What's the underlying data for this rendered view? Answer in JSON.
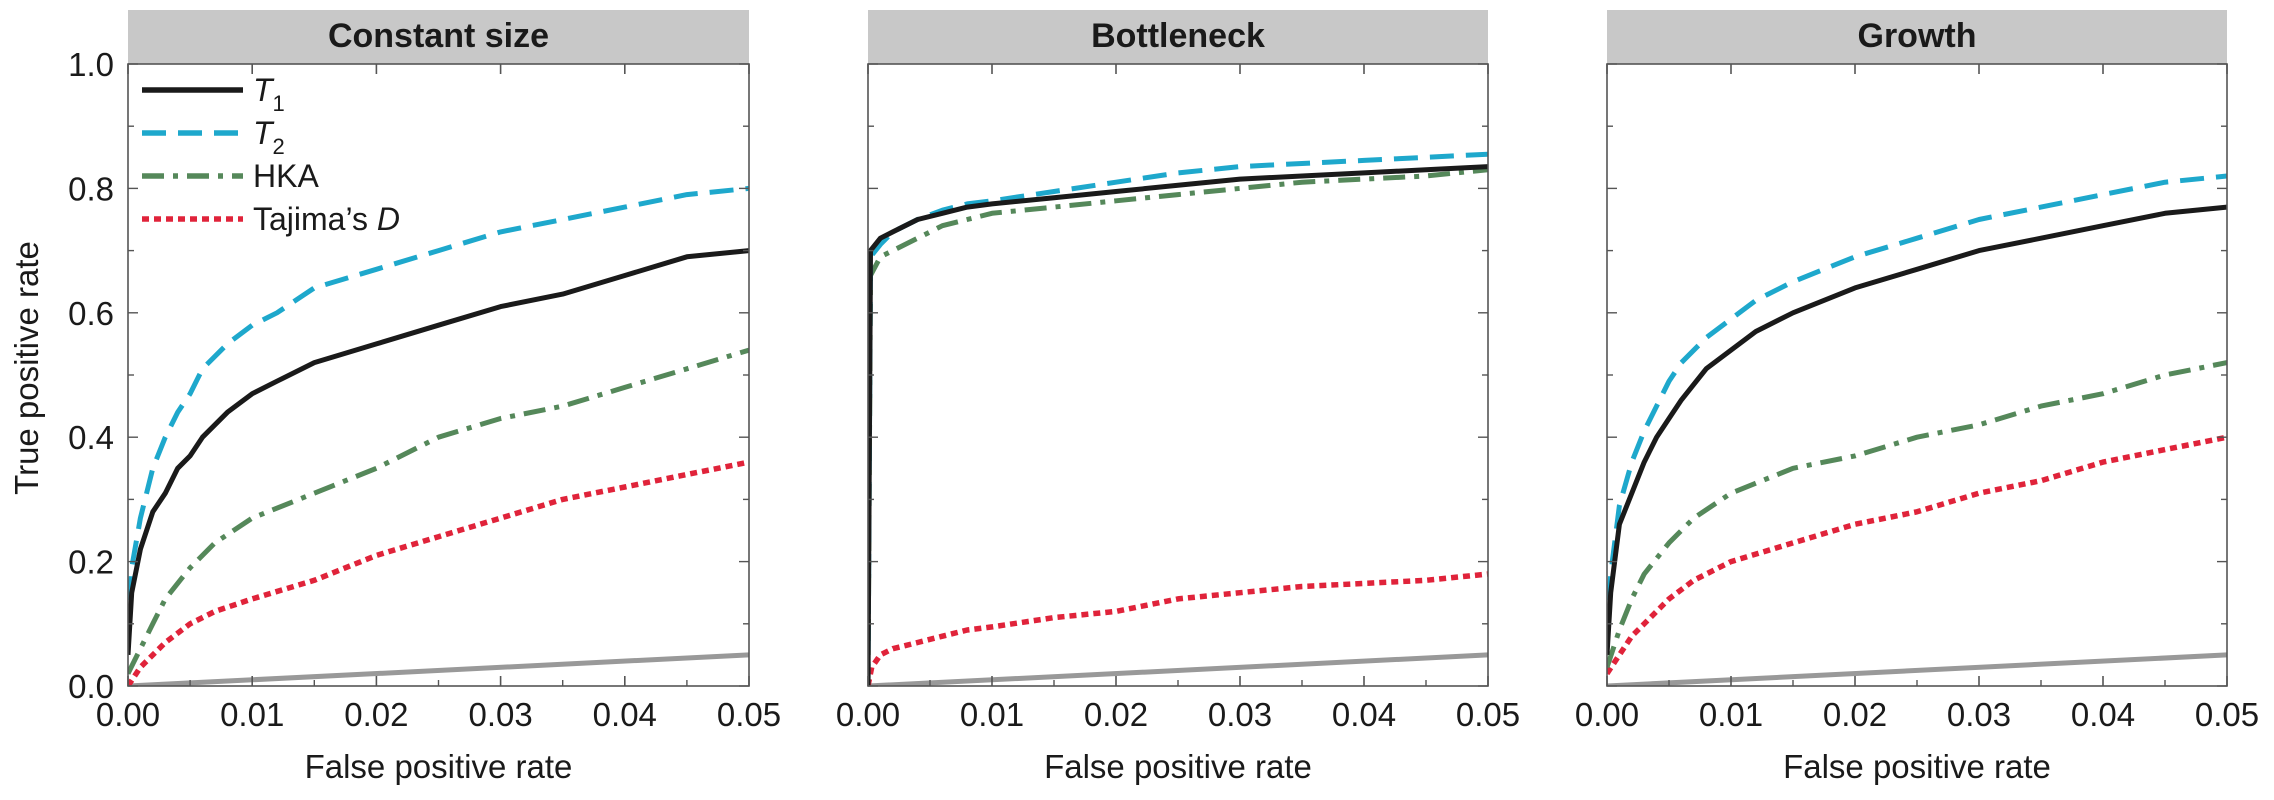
{
  "figure": {
    "ylabel": "True positive rate"
  },
  "legend": [
    {
      "label": "T",
      "sub": "1",
      "italic": true
    },
    {
      "label": "T",
      "sub": "2",
      "italic": true
    },
    {
      "label": "HKA",
      "sub": "",
      "italic": false
    },
    {
      "label": "Tajima’s ",
      "italic_part": "D",
      "italic": false
    }
  ],
  "styles": {
    "T1": {
      "color": "#1a1a1a",
      "dash": "none"
    },
    "T2": {
      "color": "#1ea8cc",
      "dash": "24,12"
    },
    "HKA": {
      "color": "#55885a",
      "dash": "22,9,5,9"
    },
    "TajimaD": {
      "color": "#e0233a",
      "dash": "7,5"
    },
    "diagonal": {
      "color": "#999999",
      "dash": "none"
    },
    "title_bar_color": "#c8c8c8"
  },
  "chart_data": [
    {
      "type": "line",
      "title": "Constant size",
      "xlabel": "False positive rate",
      "ylabel": "True positive rate",
      "xlim": [
        0,
        0.05
      ],
      "ylim": [
        0,
        1.0
      ],
      "xticks": [
        "0.00",
        "0.01",
        "0.02",
        "0.03",
        "0.04",
        "0.05"
      ],
      "yticks": [
        "0.0",
        "0.2",
        "0.4",
        "0.6",
        "0.8",
        "1.0"
      ],
      "legend_position": "top-left",
      "series": [
        {
          "name": "T1",
          "x": [
            0,
            0.0003,
            0.001,
            0.002,
            0.003,
            0.004,
            0.005,
            0.006,
            0.008,
            0.01,
            0.012,
            0.015,
            0.02,
            0.025,
            0.03,
            0.035,
            0.04,
            0.045,
            0.05
          ],
          "y": [
            0.05,
            0.15,
            0.22,
            0.28,
            0.31,
            0.35,
            0.37,
            0.4,
            0.44,
            0.47,
            0.49,
            0.52,
            0.55,
            0.58,
            0.61,
            0.63,
            0.66,
            0.69,
            0.7
          ]
        },
        {
          "name": "T2",
          "x": [
            0,
            0.0003,
            0.001,
            0.002,
            0.003,
            0.004,
            0.005,
            0.006,
            0.008,
            0.01,
            0.012,
            0.015,
            0.02,
            0.025,
            0.03,
            0.035,
            0.04,
            0.045,
            0.05
          ],
          "y": [
            0.08,
            0.19,
            0.27,
            0.35,
            0.4,
            0.44,
            0.47,
            0.51,
            0.55,
            0.58,
            0.6,
            0.64,
            0.67,
            0.7,
            0.73,
            0.75,
            0.77,
            0.79,
            0.8
          ]
        },
        {
          "name": "HKA",
          "x": [
            0,
            0.001,
            0.002,
            0.003,
            0.005,
            0.007,
            0.01,
            0.015,
            0.02,
            0.025,
            0.03,
            0.035,
            0.04,
            0.045,
            0.05
          ],
          "y": [
            0.02,
            0.06,
            0.1,
            0.14,
            0.19,
            0.23,
            0.27,
            0.31,
            0.35,
            0.4,
            0.43,
            0.45,
            0.48,
            0.51,
            0.54
          ]
        },
        {
          "name": "Tajima's D",
          "x": [
            0,
            0.001,
            0.002,
            0.003,
            0.005,
            0.007,
            0.01,
            0.015,
            0.02,
            0.025,
            0.03,
            0.035,
            0.04,
            0.045,
            0.05
          ],
          "y": [
            0.0,
            0.03,
            0.05,
            0.07,
            0.1,
            0.12,
            0.14,
            0.17,
            0.21,
            0.24,
            0.27,
            0.3,
            0.32,
            0.34,
            0.36
          ]
        },
        {
          "name": "diagonal",
          "x": [
            0,
            0.05
          ],
          "y": [
            0,
            0.05
          ]
        }
      ]
    },
    {
      "type": "line",
      "title": "Bottleneck",
      "xlabel": "False positive rate",
      "ylabel": "True positive rate",
      "xlim": [
        0,
        0.05
      ],
      "ylim": [
        0,
        1.0
      ],
      "xticks": [
        "0.00",
        "0.01",
        "0.02",
        "0.03",
        "0.04",
        "0.05"
      ],
      "yticks": [],
      "series": [
        {
          "name": "T1",
          "x": [
            0,
            0.0002,
            0.001,
            0.002,
            0.004,
            0.006,
            0.008,
            0.01,
            0.015,
            0.02,
            0.025,
            0.03,
            0.035,
            0.04,
            0.045,
            0.05
          ],
          "y": [
            0.0,
            0.7,
            0.72,
            0.73,
            0.75,
            0.76,
            0.77,
            0.775,
            0.785,
            0.795,
            0.805,
            0.815,
            0.82,
            0.825,
            0.83,
            0.835
          ]
        },
        {
          "name": "T2",
          "x": [
            0,
            0.0002,
            0.001,
            0.002,
            0.004,
            0.006,
            0.008,
            0.01,
            0.015,
            0.02,
            0.025,
            0.03,
            0.035,
            0.04,
            0.045,
            0.05
          ],
          "y": [
            0.0,
            0.69,
            0.71,
            0.73,
            0.75,
            0.765,
            0.775,
            0.78,
            0.795,
            0.81,
            0.825,
            0.835,
            0.84,
            0.845,
            0.85,
            0.855
          ]
        },
        {
          "name": "HKA",
          "x": [
            0,
            0.0002,
            0.001,
            0.002,
            0.004,
            0.006,
            0.008,
            0.01,
            0.015,
            0.02,
            0.025,
            0.03,
            0.035,
            0.04,
            0.045,
            0.05
          ],
          "y": [
            0.0,
            0.66,
            0.69,
            0.7,
            0.72,
            0.74,
            0.75,
            0.76,
            0.77,
            0.78,
            0.79,
            0.8,
            0.81,
            0.815,
            0.82,
            0.83
          ]
        },
        {
          "name": "Tajima's D",
          "x": [
            0,
            0.0003,
            0.001,
            0.002,
            0.004,
            0.006,
            0.008,
            0.01,
            0.015,
            0.02,
            0.025,
            0.03,
            0.035,
            0.04,
            0.045,
            0.05
          ],
          "y": [
            0.0,
            0.03,
            0.05,
            0.06,
            0.07,
            0.08,
            0.09,
            0.095,
            0.11,
            0.12,
            0.14,
            0.15,
            0.16,
            0.165,
            0.17,
            0.18
          ]
        },
        {
          "name": "diagonal",
          "x": [
            0,
            0.05
          ],
          "y": [
            0,
            0.05
          ]
        }
      ]
    },
    {
      "type": "line",
      "title": "Growth",
      "xlabel": "False positive rate",
      "ylabel": "True positive rate",
      "xlim": [
        0,
        0.05
      ],
      "ylim": [
        0,
        1.0
      ],
      "xticks": [
        "0.00",
        "0.01",
        "0.02",
        "0.03",
        "0.04",
        "0.05"
      ],
      "yticks": [],
      "series": [
        {
          "name": "T1",
          "x": [
            0,
            0.0003,
            0.001,
            0.002,
            0.003,
            0.004,
            0.005,
            0.006,
            0.008,
            0.01,
            0.012,
            0.015,
            0.02,
            0.025,
            0.03,
            0.035,
            0.04,
            0.045,
            0.05
          ],
          "y": [
            0.05,
            0.15,
            0.26,
            0.31,
            0.36,
            0.4,
            0.43,
            0.46,
            0.51,
            0.54,
            0.57,
            0.6,
            0.64,
            0.67,
            0.7,
            0.72,
            0.74,
            0.76,
            0.77
          ]
        },
        {
          "name": "T2",
          "x": [
            0,
            0.0003,
            0.001,
            0.002,
            0.003,
            0.004,
            0.005,
            0.006,
            0.008,
            0.01,
            0.012,
            0.015,
            0.02,
            0.025,
            0.03,
            0.035,
            0.04,
            0.045,
            0.05
          ],
          "y": [
            0.08,
            0.18,
            0.29,
            0.36,
            0.41,
            0.45,
            0.49,
            0.52,
            0.56,
            0.59,
            0.62,
            0.65,
            0.69,
            0.72,
            0.75,
            0.77,
            0.79,
            0.81,
            0.82
          ]
        },
        {
          "name": "HKA",
          "x": [
            0,
            0.001,
            0.002,
            0.003,
            0.005,
            0.007,
            0.01,
            0.015,
            0.02,
            0.025,
            0.03,
            0.035,
            0.04,
            0.045,
            0.05
          ],
          "y": [
            0.03,
            0.09,
            0.14,
            0.18,
            0.23,
            0.27,
            0.31,
            0.35,
            0.37,
            0.4,
            0.42,
            0.45,
            0.47,
            0.5,
            0.52
          ]
        },
        {
          "name": "Tajima's D",
          "x": [
            0,
            0.001,
            0.002,
            0.003,
            0.005,
            0.007,
            0.01,
            0.015,
            0.02,
            0.025,
            0.03,
            0.035,
            0.04,
            0.045,
            0.05
          ],
          "y": [
            0.02,
            0.05,
            0.08,
            0.1,
            0.14,
            0.17,
            0.2,
            0.23,
            0.26,
            0.28,
            0.31,
            0.33,
            0.36,
            0.38,
            0.4
          ]
        },
        {
          "name": "diagonal",
          "x": [
            0,
            0.05
          ],
          "y": [
            0,
            0.05
          ]
        }
      ]
    }
  ]
}
